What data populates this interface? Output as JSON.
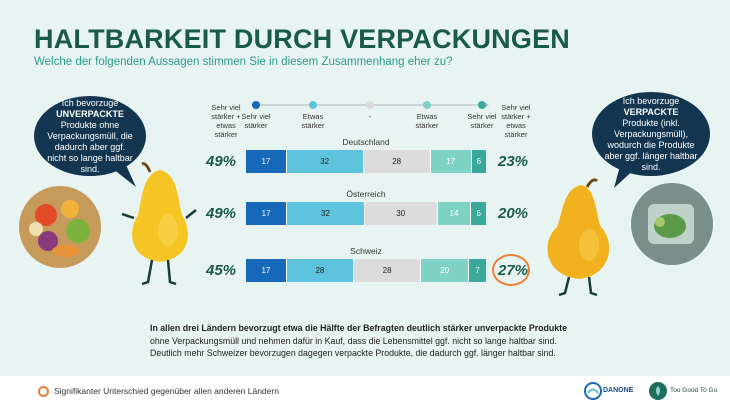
{
  "title": "HALTBARKEIT DURCH VERPACKUNGEN",
  "subtitle": "Welche der folgenden Aussagen stimmen Sie in diesem Zusammenhang eher zu?",
  "left_bubble": {
    "line1": "Ich bevorzuge",
    "bold": "UNVERPACKTE",
    "rest": "Produkte ohne Verpackungsmüll, die dadurch aber ggf. nicht so lange haltbar sind."
  },
  "right_bubble": {
    "line1": "Ich bevorzuge",
    "bold": "VERPACKTE",
    "rest": "Produkte (inkl. Verpackungsmüll), wodurch die Produkte aber ggf. länger haltbar sind."
  },
  "left_summary_header": "Sehr viel stärker + etwas stärker",
  "right_summary_header": "Sehr viel stärker + etwas stärker",
  "legend": [
    {
      "label": "Sehr viel stärker",
      "color": "#1668b8"
    },
    {
      "label": "Etwas stärker",
      "color": "#5ec3dc"
    },
    {
      "label": "-",
      "color": "#dcdcdc"
    },
    {
      "label": "Etwas stärker",
      "color": "#7fd3c5"
    },
    {
      "label": "Sehr viel stärker",
      "color": "#3aa89a"
    }
  ],
  "chart_data": {
    "type": "bar",
    "stacked": true,
    "categories": [
      "Deutschland",
      "Österreich",
      "Schweiz"
    ],
    "series": [
      {
        "name": "Sehr viel stärker",
        "values": [
          17,
          17,
          17
        ]
      },
      {
        "name": "Etwas stärker",
        "values": [
          32,
          32,
          28
        ]
      },
      {
        "name": "-",
        "values": [
          28,
          30,
          28
        ]
      },
      {
        "name": "Etwas stärker",
        "values": [
          17,
          14,
          20
        ]
      },
      {
        "name": "Sehr viel stärker",
        "values": [
          6,
          6,
          7
        ]
      }
    ],
    "left_totals": [
      "49%",
      "49%",
      "45%"
    ],
    "right_totals": [
      "23%",
      "20%",
      "27%"
    ],
    "significant": [
      false,
      false,
      true
    ]
  },
  "summary": {
    "bold": "In allen drei Ländern bevorzugt etwa die Hälfte der Befragten deutlich stärker unverpackte Produkte",
    "line2": "ohne Verpackungsmüll und nehmen dafür in Kauf, dass die Lebensmittel ggf. nicht so lange haltbar sind.",
    "line3": "Deutlich mehr Schweizer bevorzugen dagegen verpackte Produkte, die dadurch ggf. länger haltbar sind."
  },
  "footer": {
    "note": "Signifikanter Unterschied gegenüber allen anderen Ländern",
    "logo1": "DANONE",
    "logo2": "Too Good To Go"
  }
}
